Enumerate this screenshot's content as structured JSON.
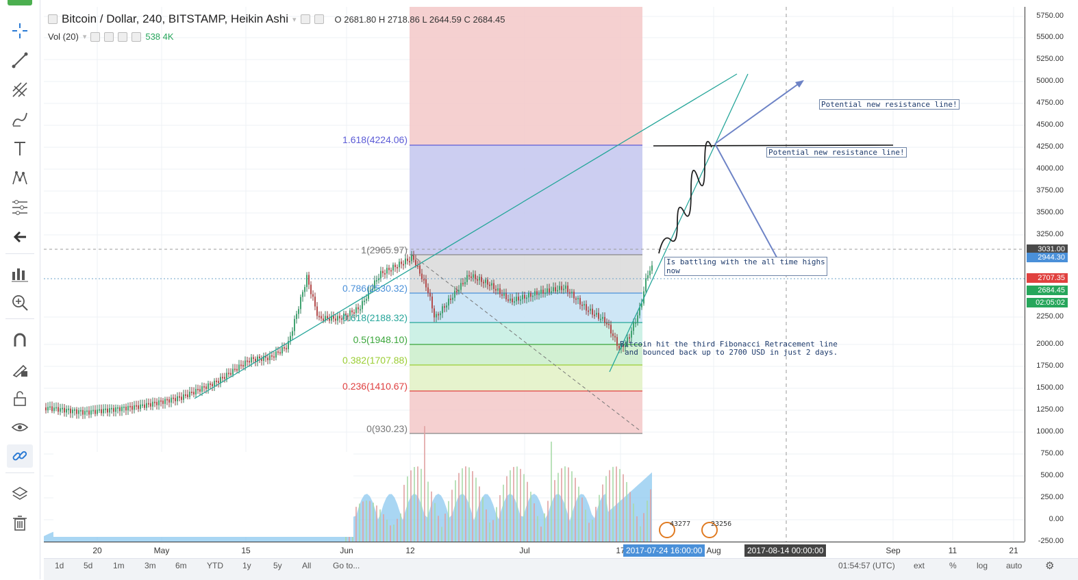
{
  "symbol": {
    "title": "Bitcoin / Dollar, 240, BITSTAMP, Heikin Ashi",
    "ohlc": "O 2681.80  H 2718.86  L 2644.59  C 2684.45",
    "volume_label": "Vol (20)",
    "volume_value": "538 4K"
  },
  "toolbar": {
    "items": [
      "crosshair-icon",
      "trend-line-icon",
      "pitchfork-icon",
      "brush-icon",
      "text-icon",
      "pattern-icon",
      "fib-tool-icon",
      "back-arrow-icon",
      "long-position-icon",
      "zoom-in-icon",
      "magnet-icon",
      "lock-drawing-icon",
      "unlock-icon",
      "eye-icon",
      "link-icon",
      "layers-icon",
      "trash-icon"
    ]
  },
  "price_axis": {
    "ticks": [
      "5750.00",
      "5500.00",
      "5250.00",
      "5000.00",
      "4750.00",
      "4500.00",
      "4250.00",
      "4000.00",
      "3750.00",
      "3500.00",
      "3250.00",
      "2250.00",
      "2000.00",
      "1750.00",
      "1500.00",
      "1250.00",
      "1000.00",
      "750.00",
      "500.00",
      "250.00",
      "0.00",
      "-250.00"
    ],
    "tags": [
      {
        "text": "3031.00",
        "color": "#4a4a4a"
      },
      {
        "text": "2944.30",
        "color": "#4a90d9"
      },
      {
        "text": "2707.35",
        "color": "#e0413f"
      },
      {
        "text": "2684.45",
        "color": "#26a65b"
      },
      {
        "text": "02:05:02",
        "color": "#26a65b"
      }
    ]
  },
  "time_axis": {
    "labels": [
      "20",
      "May",
      "15",
      "Jun",
      "12",
      "Jul",
      "17",
      "Aug",
      "Sep",
      "11",
      "21"
    ],
    "tag_cursor": "2017-07-24 16:00:00",
    "tag_future": "2017-08-14 00:00:00"
  },
  "fib_levels": [
    {
      "label": "1.618(4224.06)",
      "color": "#5b5bd6"
    },
    {
      "label": "1(2965.97)",
      "color": "#777777"
    },
    {
      "label": "0.786(2530.32)",
      "color": "#4a90d9"
    },
    {
      "label": "0.618(2188.32)",
      "color": "#26a69a"
    },
    {
      "label": "0.5(1948.10)",
      "color": "#3aa53a"
    },
    {
      "label": "0.382(1707.88)",
      "color": "#9acd32"
    },
    {
      "label": "0.236(1410.67)",
      "color": "#e04040"
    },
    {
      "label": "0(930.23)",
      "color": "#777777"
    }
  ],
  "annotations": {
    "resistance_top": "Potential new resistance line!",
    "resistance_mid": "Potential new resistance line!",
    "battling": "Is battling with the all time highs now",
    "fib_note_1": "Bitcoin hit the third Fibonacci Retracement line",
    "fib_note_2": "and bounced back up to 2700 USD in just 2 days."
  },
  "event_counts": [
    "43277",
    "23256"
  ],
  "bottom_bar": {
    "ranges": [
      "1d",
      "5d",
      "1m",
      "3m",
      "6m",
      "YTD",
      "1y",
      "5y",
      "All"
    ],
    "goto": "Go to...",
    "clock": "01:54:57 (UTC)",
    "options": [
      "ext",
      "%",
      "log",
      "auto"
    ]
  }
}
